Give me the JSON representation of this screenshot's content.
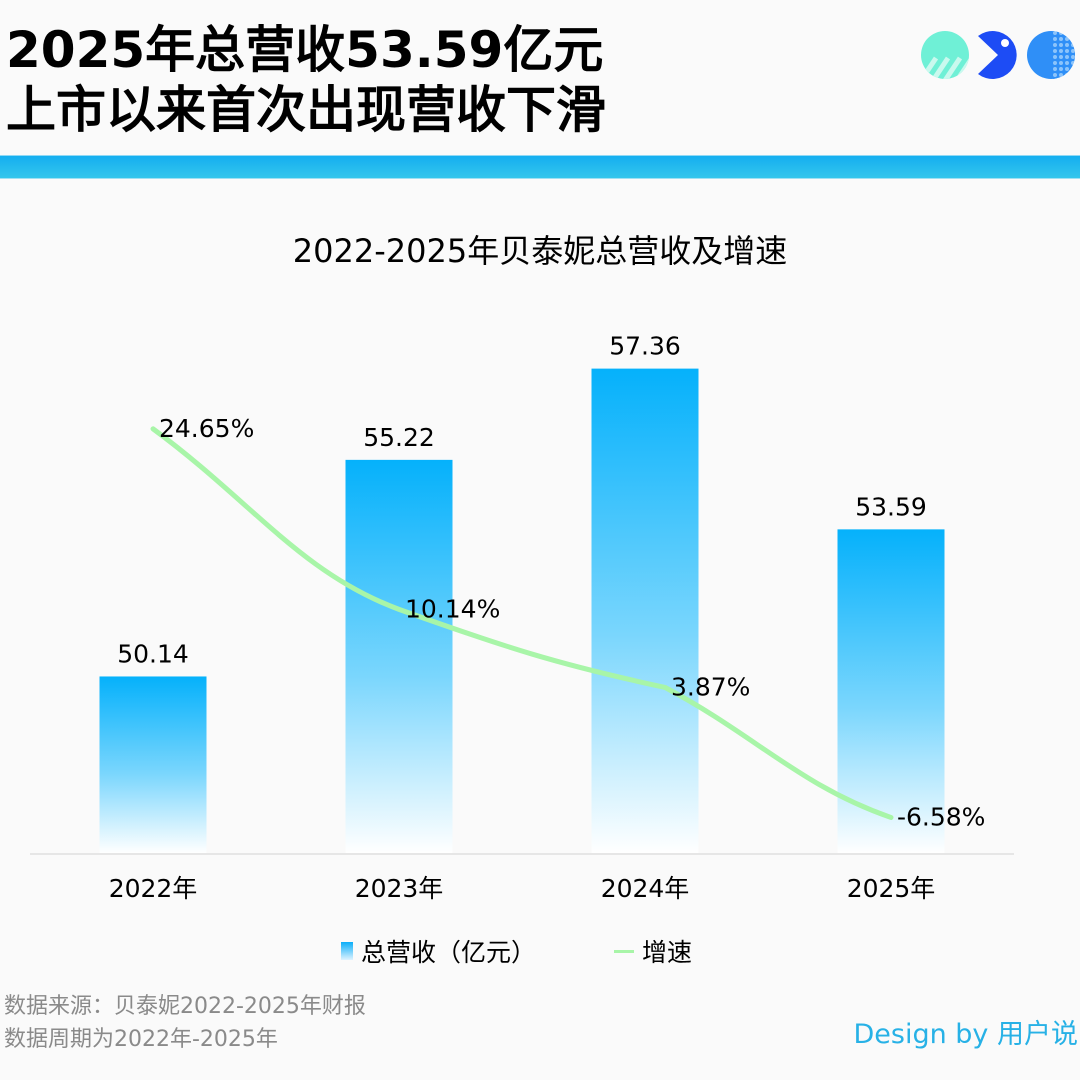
{
  "headline": {
    "line1": "2025年总营收53.59亿元",
    "line2": "上市以来首次出现营收下滑"
  },
  "logo": {
    "icons": [
      "striped-circle-icon",
      "pacman-icon",
      "dotted-circle-icon"
    ],
    "colors": [
      "#6ff0d6",
      "#1d4cf5",
      "#2f8ff7"
    ]
  },
  "accent_band_color": "#15aef0",
  "chart_data": {
    "type": "bar+line",
    "title": "2022-2025年贝泰妮总营收及增速",
    "categories": [
      "2022年",
      "2023年",
      "2024年",
      "2025年"
    ],
    "series": [
      {
        "name": "总营收（亿元）",
        "type": "bar",
        "values": [
          50.14,
          55.22,
          57.36,
          53.59
        ],
        "labels": [
          "50.14",
          "55.22",
          "57.36",
          "53.59"
        ],
        "color_top": "#05b1fb",
        "color_bottom": "#ffffff"
      },
      {
        "name": "增速",
        "type": "line",
        "values": [
          24.65,
          10.14,
          3.87,
          -6.58
        ],
        "labels": [
          "24.65%",
          "10.14%",
          "3.87%",
          "-6.58%"
        ],
        "unit": "%",
        "color": "#a8f5a8"
      }
    ],
    "bar_axis_range": [
      46,
      58.5
    ],
    "line_axis_range": [
      -10,
      35
    ],
    "grid": false,
    "axes_visible": false,
    "legend": {
      "position": "bottom-center",
      "items": [
        "总营收（亿元）",
        "增速"
      ]
    }
  },
  "footer": {
    "source_line1": "数据来源：贝泰妮2022-2025年财报",
    "source_line2": "数据周期为2022年-2025年",
    "credit": "Design by 用户说",
    "credit_color": "#27b1e6"
  }
}
